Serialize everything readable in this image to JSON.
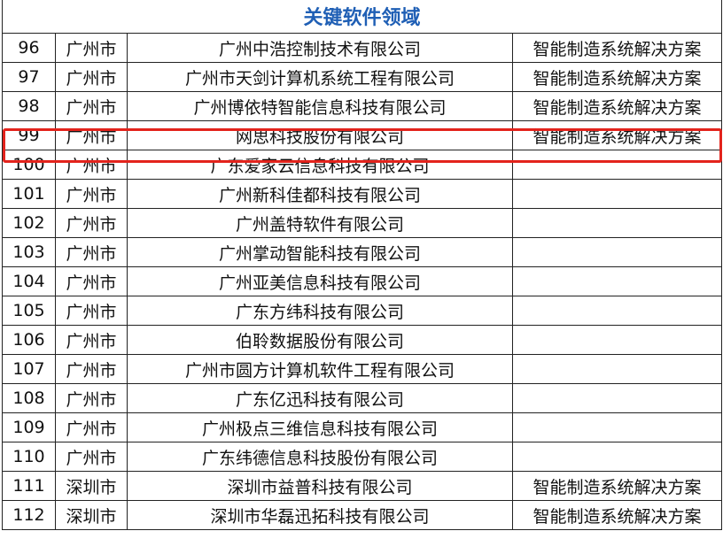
{
  "title": "关键软件领域",
  "highlight_color": "#e3231c",
  "title_color": "#1f5fb5",
  "highlighted_row": "99",
  "rows": [
    {
      "no": "96",
      "city": "广州市",
      "company": "广州中浩控制技术有限公司",
      "field": "智能制造系统解决方案"
    },
    {
      "no": "97",
      "city": "广州市",
      "company": "广州市天剑计算机系统工程有限公司",
      "field": "智能制造系统解决方案"
    },
    {
      "no": "98",
      "city": "广州市",
      "company": "广州博依特智能信息科技有限公司",
      "field": "智能制造系统解决方案"
    },
    {
      "no": "99",
      "city": "广州市",
      "company": "网思科技股份有限公司",
      "field": "智能制造系统解决方案"
    },
    {
      "no": "100",
      "city": "广州市",
      "company": "广东爱家云信息科技有限公司",
      "field": ""
    },
    {
      "no": "101",
      "city": "广州市",
      "company": "广州新科佳都科技有限公司",
      "field": ""
    },
    {
      "no": "102",
      "city": "广州市",
      "company": "广州盖特软件有限公司",
      "field": ""
    },
    {
      "no": "103",
      "city": "广州市",
      "company": "广州掌动智能科技有限公司",
      "field": ""
    },
    {
      "no": "104",
      "city": "广州市",
      "company": "广州亚美信息科技有限公司",
      "field": ""
    },
    {
      "no": "105",
      "city": "广州市",
      "company": "广东方纬科技有限公司",
      "field": ""
    },
    {
      "no": "106",
      "city": "广州市",
      "company": "伯聆数据股份有限公司",
      "field": ""
    },
    {
      "no": "107",
      "city": "广州市",
      "company": "广州市圆方计算机软件工程有限公司",
      "field": ""
    },
    {
      "no": "108",
      "city": "广州市",
      "company": "广东亿迅科技有限公司",
      "field": ""
    },
    {
      "no": "109",
      "city": "广州市",
      "company": "广州极点三维信息科技有限公司",
      "field": ""
    },
    {
      "no": "110",
      "city": "广州市",
      "company": "广东纬德信息科技股份有限公司",
      "field": ""
    },
    {
      "no": "111",
      "city": "深圳市",
      "company": "深圳市益普科技有限公司",
      "field": "智能制造系统解决方案"
    },
    {
      "no": "112",
      "city": "深圳市",
      "company": "深圳市华磊迅拓科技有限公司",
      "field": "智能制造系统解决方案"
    }
  ]
}
